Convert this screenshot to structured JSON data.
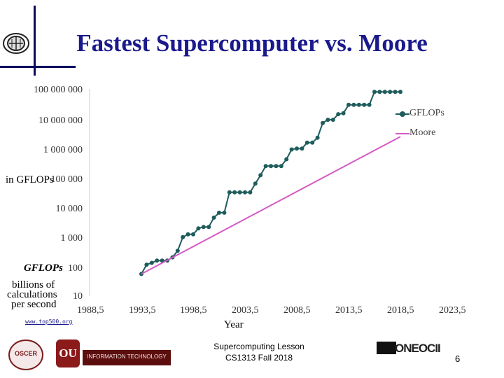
{
  "slide": {
    "title": "Fastest Supercomputer vs. Moore",
    "y_axis_label": "in GFLOPs",
    "gflops_note": {
      "title": "GFLOPs",
      "line1": "billions of",
      "line2": "calculations",
      "line3": "per second"
    },
    "source": "www.top500.org",
    "footer_line1": "Supercomputing Lesson",
    "footer_line2": "CS1313 Fall 2018",
    "page_number": "6",
    "logos": {
      "corner_logo": "globe-logo",
      "oscer": "OSCER",
      "ou": "OU",
      "it": "INFORMATION TECHNOLOGY",
      "oneocii": "ONEOCII"
    }
  },
  "chart_data": {
    "type": "line",
    "title": "",
    "xlabel": "Year",
    "ylabel": "in GFLOPs",
    "y_scale": "log",
    "ylim": [
      10,
      100000000
    ],
    "xlim": [
      1988.5,
      2023.5
    ],
    "y_ticks": [
      "100 000 000",
      "10 000 000",
      "1 000 000",
      "100 000",
      "10 000",
      "1 000",
      "100",
      "10"
    ],
    "x_ticks": [
      "1988,5",
      "1993,5",
      "1998,5",
      "2003,5",
      "2008,5",
      "2013,5",
      "2018,5",
      "2023,5"
    ],
    "legend_position": "right",
    "series": [
      {
        "name": "GFLOPs",
        "color": "#1f5c5c",
        "marker": "circle",
        "x": [
          1993.5,
          1994,
          1994.5,
          1995,
          1995.5,
          1996,
          1996.5,
          1997,
          1997.5,
          1998,
          1998.5,
          1999,
          1999.5,
          2000,
          2000.5,
          2001,
          2001.5,
          2002,
          2002.5,
          2003,
          2003.5,
          2004,
          2004.5,
          2005,
          2005.5,
          2006,
          2006.5,
          2007,
          2007.5,
          2008,
          2008.5,
          2009,
          2009.5,
          2010,
          2010.5,
          2011,
          2011.5,
          2012,
          2012.5,
          2013,
          2013.5,
          2014,
          2014.5,
          2015,
          2015.5,
          2016,
          2016.5,
          2017,
          2017.5,
          2018,
          2018.5
        ],
        "y": [
          59.7,
          124,
          143,
          170,
          170,
          170,
          220,
          368,
          1070,
          1340,
          1340,
          2120,
          2380,
          2380,
          4940,
          7230,
          7230,
          35860,
          35860,
          35860,
          35860,
          35860,
          70720,
          136800,
          280600,
          280600,
          280600,
          280600,
          478200,
          1026000,
          1105000,
          1105000,
          1759000,
          1759000,
          2566000,
          8162000,
          10510000,
          10510000,
          16320000,
          17590000,
          33860000,
          33860000,
          33860000,
          33860000,
          33860000,
          93010000,
          93010000,
          93010000,
          93010000,
          93010000,
          93010000
        ]
      },
      {
        "name": "Moore",
        "color": "#d45ac4",
        "x": [
          1993.5,
          2018.5
        ],
        "y": [
          59.7,
          2800000
        ]
      }
    ]
  }
}
